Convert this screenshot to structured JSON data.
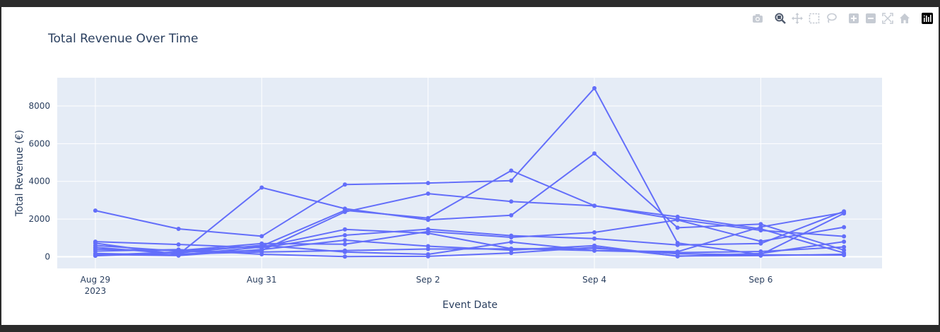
{
  "chart_data": {
    "type": "line",
    "title": "Total Revenue Over Time",
    "xlabel": "Event Date",
    "ylabel": "Total Revenue (€)",
    "x": [
      "2023-08-29",
      "2023-08-30",
      "2023-08-31",
      "2023-09-01",
      "2023-09-02",
      "2023-09-03",
      "2023-09-04",
      "2023-09-05",
      "2023-09-06",
      "2023-09-07"
    ],
    "x_ticks": [
      {
        "date": "2023-08-29",
        "label": "Aug 29",
        "sublabel": "2023"
      },
      {
        "date": "2023-08-31",
        "label": "Aug 31",
        "sublabel": ""
      },
      {
        "date": "2023-09-02",
        "label": "Sep 2",
        "sublabel": ""
      },
      {
        "date": "2023-09-04",
        "label": "Sep 4",
        "sublabel": ""
      },
      {
        "date": "2023-09-06",
        "label": "Sep 6",
        "sublabel": ""
      }
    ],
    "xlim": [
      "2023-08-28T13:00",
      "2023-09-07T11:00"
    ],
    "ylim": [
      -620,
      9500
    ],
    "y_ticks": [
      0,
      2000,
      4000,
      6000,
      8000
    ],
    "grid": true,
    "line_color": "#636efa",
    "series": [
      {
        "values": [
          2450,
          1480,
          1090,
          3830,
          3910,
          4040,
          8940,
          730,
          110,
          2300
        ]
      },
      {
        "values": [
          720,
          120,
          3670,
          2550,
          1960,
          2200,
          5480,
          1540,
          1730,
          350
        ]
      },
      {
        "values": [
          80,
          250,
          330,
          2380,
          3350,
          2930,
          2700,
          2120,
          1480,
          200
        ]
      },
      {
        "values": [
          600,
          300,
          570,
          2460,
          2050,
          4570,
          2710,
          1980,
          1400,
          1080
        ]
      },
      {
        "values": [
          800,
          650,
          480,
          1140,
          1460,
          1120,
          960,
          630,
          700,
          2410
        ]
      },
      {
        "values": [
          400,
          330,
          700,
          660,
          1340,
          1030,
          1290,
          1950,
          820,
          1570
        ]
      },
      {
        "values": [
          180,
          90,
          520,
          1450,
          1250,
          430,
          330,
          270,
          1580,
          2350
        ]
      },
      {
        "values": [
          120,
          60,
          380,
          880,
          560,
          350,
          590,
          20,
          180,
          800
        ]
      },
      {
        "values": [
          50,
          200,
          610,
          250,
          130,
          780,
          320,
          220,
          280,
          520
        ]
      },
      {
        "values": [
          300,
          380,
          130,
          10,
          20,
          200,
          500,
          40,
          60,
          130
        ]
      },
      {
        "values": [
          500,
          150,
          250,
          330,
          410,
          420,
          450,
          160,
          100,
          90
        ]
      }
    ]
  },
  "modebar": {
    "icons": [
      "camera-icon",
      "zoom-icon",
      "pan-icon",
      "box-select-icon",
      "lasso-select-icon",
      "zoom-in-icon",
      "zoom-out-icon",
      "autoscale-icon",
      "reset-axes-icon",
      "plotly-logo-icon"
    ]
  }
}
